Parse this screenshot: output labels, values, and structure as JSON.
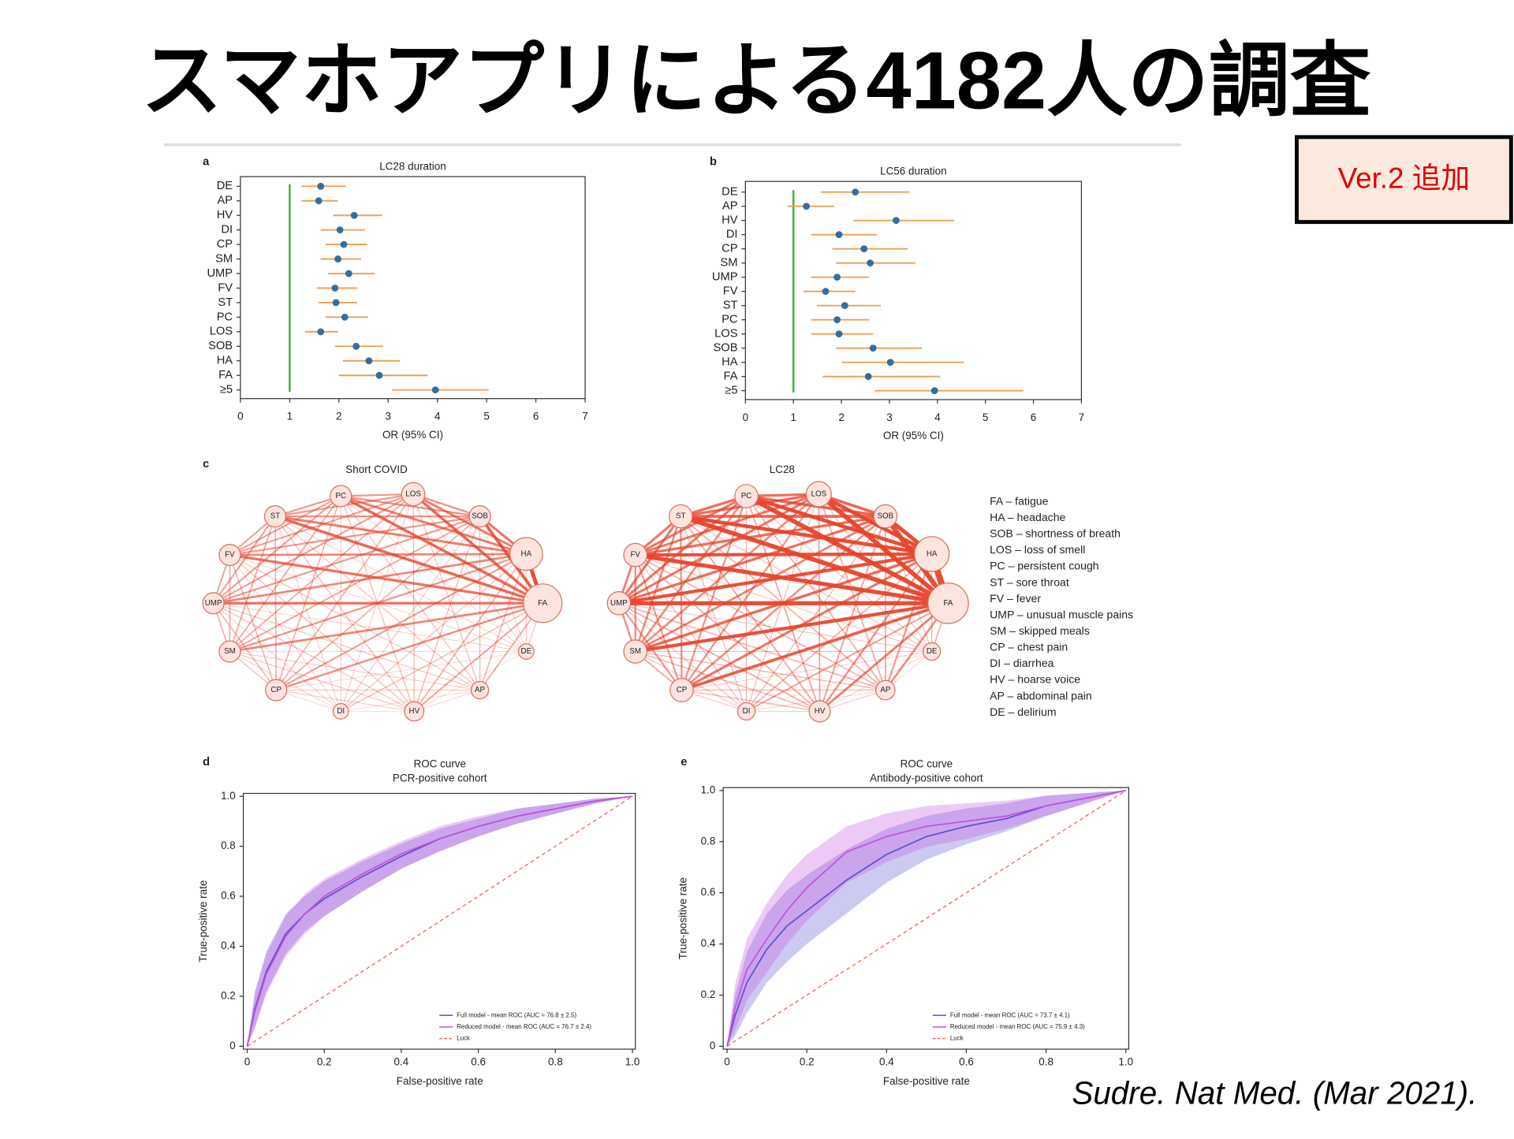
{
  "title": "スマホアプリによる4182人の調査",
  "badge": "Ver.2 追加",
  "citation": "Sudre. Nat Med. (Mar 2021).",
  "panel_labels": [
    "a",
    "b",
    "c",
    "d",
    "e"
  ],
  "networks": [
    {
      "title": "Short COVID",
      "nodes": [
        "FA",
        "HA",
        "SOB",
        "LOS",
        "PC",
        "ST",
        "FV",
        "UMP",
        "SM",
        "CP",
        "DI",
        "HV",
        "AP",
        "DE"
      ]
    },
    {
      "title": "LC28",
      "nodes": [
        "FA",
        "HA",
        "SOB",
        "LOS",
        "PC",
        "ST",
        "FV",
        "UMP",
        "SM",
        "CP",
        "DI",
        "HV",
        "AP",
        "DE"
      ]
    }
  ],
  "legend_items": [
    "FA – fatigue",
    "HA – headache",
    "SOB – shortness of breath",
    "LOS – loss of smell",
    "PC – persistent cough",
    "ST – sore throat",
    "FV – fever",
    "UMP – unusual muscle pains",
    "SM – skipped meals",
    "CP – chest pain",
    "DI – diarrhea",
    "HV – hoarse voice",
    "AP – abdominal pain",
    "DE – delirium"
  ],
  "chart_data": [
    {
      "type": "forest",
      "title": "LC28 duration",
      "x_label": "OR (95% CI)",
      "categories": [
        "DE",
        "AP",
        "HV",
        "DI",
        "CP",
        "SM",
        "UMP",
        "FV",
        "ST",
        "PC",
        "LOS",
        "SOB",
        "HA",
        "FA",
        "≥5"
      ],
      "values": [
        1.63,
        1.59,
        2.31,
        2.02,
        2.1,
        1.98,
        2.2,
        1.92,
        1.94,
        2.12,
        1.63,
        2.35,
        2.61,
        2.82,
        3.96
      ],
      "ci_low": [
        1.24,
        1.24,
        1.88,
        1.63,
        1.73,
        1.63,
        1.78,
        1.55,
        1.59,
        1.73,
        1.31,
        1.92,
        2.08,
        2.0,
        3.08
      ],
      "ci_high": [
        2.14,
        1.98,
        2.88,
        2.53,
        2.57,
        2.45,
        2.73,
        2.37,
        2.37,
        2.59,
        1.98,
        2.9,
        3.24,
        3.8,
        5.04
      ],
      "ref_line": 1,
      "color": "#2f6f9f",
      "ci_color": "#f0a050",
      "ref_color": "#3cb043",
      "xlim": [
        0,
        7
      ],
      "xticks": [
        0,
        1,
        2,
        3,
        4,
        5,
        6,
        7
      ]
    },
    {
      "type": "forest",
      "title": "LC56 duration",
      "x_label": "OR (95% CI)",
      "categories": [
        "DE",
        "AP",
        "HV",
        "DI",
        "CP",
        "SM",
        "UMP",
        "FV",
        "ST",
        "PC",
        "LOS",
        "SOB",
        "HA",
        "FA",
        "≥5"
      ],
      "values": [
        2.29,
        1.27,
        3.14,
        1.95,
        2.47,
        2.6,
        1.91,
        1.67,
        2.07,
        1.91,
        1.95,
        2.66,
        3.02,
        2.56,
        3.94
      ],
      "ci_low": [
        1.57,
        0.87,
        2.25,
        1.37,
        1.81,
        1.89,
        1.37,
        1.21,
        1.49,
        1.37,
        1.37,
        1.89,
        2.01,
        1.61,
        2.7
      ],
      "ci_high": [
        3.42,
        1.85,
        4.35,
        2.74,
        3.38,
        3.54,
        2.58,
        2.29,
        2.82,
        2.58,
        2.66,
        3.68,
        4.55,
        4.06,
        5.79
      ],
      "ref_line": 1,
      "color": "#2f6f9f",
      "ci_color": "#f0a050",
      "ref_color": "#3cb043",
      "xlim": [
        0,
        7
      ],
      "xticks": [
        0,
        1,
        2,
        3,
        4,
        5,
        6,
        7
      ]
    },
    {
      "type": "roc",
      "title": "ROC curve",
      "subtitle": "PCR-positive cohort",
      "x_label": "False-positive rate",
      "y_label": "True-positive rate",
      "x": [
        0,
        0.02,
        0.05,
        0.1,
        0.15,
        0.2,
        0.3,
        0.4,
        0.5,
        0.6,
        0.7,
        0.8,
        0.9,
        1
      ],
      "series": [
        {
          "name": "Full model - mean ROC (AUC = 76.8 ± 2.5)",
          "color": "#5b4fd0",
          "values": [
            0,
            0.15,
            0.3,
            0.45,
            0.53,
            0.59,
            0.68,
            0.76,
            0.83,
            0.88,
            0.92,
            0.95,
            0.98,
            1
          ],
          "lower": [
            0,
            0.08,
            0.22,
            0.37,
            0.46,
            0.52,
            0.62,
            0.71,
            0.78,
            0.84,
            0.89,
            0.93,
            0.97,
            1
          ],
          "upper": [
            0,
            0.22,
            0.38,
            0.53,
            0.6,
            0.66,
            0.74,
            0.81,
            0.87,
            0.91,
            0.95,
            0.97,
            0.99,
            1
          ]
        },
        {
          "name": "Reduced model - mean ROC (AUC = 76.7 ± 2.4)",
          "color": "#c44fe0",
          "values": [
            0,
            0.14,
            0.29,
            0.44,
            0.53,
            0.6,
            0.69,
            0.77,
            0.83,
            0.88,
            0.92,
            0.95,
            0.98,
            1
          ],
          "lower": [
            0,
            0.07,
            0.21,
            0.36,
            0.45,
            0.52,
            0.62,
            0.71,
            0.78,
            0.84,
            0.89,
            0.93,
            0.97,
            1
          ],
          "upper": [
            0,
            0.21,
            0.37,
            0.52,
            0.61,
            0.67,
            0.75,
            0.82,
            0.88,
            0.92,
            0.95,
            0.97,
            0.99,
            1
          ]
        },
        {
          "name": "Luck",
          "color": "#e8604c",
          "dashed": true,
          "values": [
            0,
            0.02,
            0.05,
            0.1,
            0.15,
            0.2,
            0.3,
            0.4,
            0.5,
            0.6,
            0.7,
            0.8,
            0.9,
            1
          ]
        }
      ],
      "xlim": [
        0,
        1
      ],
      "ylim": [
        0,
        1
      ],
      "xticks": [
        0,
        0.2,
        0.4,
        0.6,
        0.8,
        {
          "value": 1,
          "label": "1.0"
        }
      ],
      "yticks": [
        0,
        0.2,
        0.4,
        0.6,
        0.8,
        {
          "value": 1,
          "label": "1.0"
        }
      ]
    },
    {
      "type": "roc",
      "title": "ROC curve",
      "subtitle": "Antibody-positive cohort",
      "x_label": "False-positive rate",
      "y_label": "True-positive rate",
      "x": [
        0,
        0.02,
        0.05,
        0.1,
        0.15,
        0.2,
        0.3,
        0.4,
        0.5,
        0.6,
        0.7,
        0.8,
        0.9,
        1
      ],
      "series": [
        {
          "name": "Full model - mean ROC (AUC = 73.7 ± 4.1)",
          "color": "#5b4fd0",
          "values": [
            0,
            0.12,
            0.25,
            0.38,
            0.47,
            0.53,
            0.65,
            0.75,
            0.82,
            0.86,
            0.89,
            0.94,
            0.97,
            1
          ],
          "lower": [
            0,
            0.04,
            0.13,
            0.25,
            0.33,
            0.4,
            0.52,
            0.64,
            0.73,
            0.79,
            0.84,
            0.9,
            0.95,
            1
          ],
          "upper": [
            0,
            0.2,
            0.37,
            0.52,
            0.61,
            0.67,
            0.77,
            0.85,
            0.9,
            0.93,
            0.95,
            0.98,
            0.99,
            1
          ]
        },
        {
          "name": "Reduced model - mean ROC (AUC = 75.9 ± 4.3)",
          "color": "#c44fe0",
          "values": [
            0,
            0.15,
            0.3,
            0.42,
            0.53,
            0.62,
            0.76,
            0.82,
            0.86,
            0.88,
            0.9,
            0.94,
            0.97,
            1
          ],
          "lower": [
            0,
            0.06,
            0.18,
            0.29,
            0.4,
            0.49,
            0.64,
            0.72,
            0.78,
            0.81,
            0.85,
            0.9,
            0.95,
            1
          ],
          "upper": [
            0,
            0.24,
            0.42,
            0.56,
            0.67,
            0.75,
            0.86,
            0.91,
            0.94,
            0.95,
            0.96,
            0.98,
            0.99,
            1
          ]
        },
        {
          "name": "Luck",
          "color": "#e8604c",
          "dashed": true,
          "values": [
            0,
            0.02,
            0.05,
            0.1,
            0.15,
            0.2,
            0.3,
            0.4,
            0.5,
            0.6,
            0.7,
            0.8,
            0.9,
            1
          ]
        }
      ],
      "xlim": [
        0,
        1
      ],
      "ylim": [
        0,
        1
      ],
      "xticks": [
        0,
        0.2,
        0.4,
        0.6,
        0.8,
        {
          "value": 1,
          "label": "1.0"
        }
      ],
      "yticks": [
        0,
        0.2,
        0.4,
        0.6,
        0.8,
        {
          "value": 1,
          "label": "1.0"
        }
      ]
    }
  ]
}
